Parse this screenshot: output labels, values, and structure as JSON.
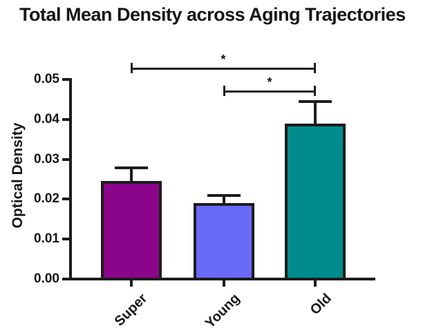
{
  "chart_data": {
    "type": "bar",
    "title": "Total Mean Density across Aging Trajectories",
    "ylabel": "Optical Density",
    "xlabel": "",
    "categories": [
      "Super",
      "Young",
      "Old"
    ],
    "values": [
      0.0245,
      0.019,
      0.039
    ],
    "errors_upper": [
      0.0033,
      0.002,
      0.0055
    ],
    "bar_colors": [
      "#8A0589",
      "#6A6AFA",
      "#008C8C"
    ],
    "ylim": [
      0,
      0.05
    ],
    "yticks": [
      0,
      0.01,
      0.02,
      0.03,
      0.04,
      0.05
    ],
    "ytick_labels": [
      "0.00",
      "0.01",
      "0.02",
      "0.03",
      "0.04",
      "0.05"
    ],
    "grid": false,
    "legend": "none",
    "error_bar_style": "upper-only with caps",
    "significance": [
      {
        "from": "Super",
        "to": "Old",
        "label": "*",
        "y_value": 0.0528
      },
      {
        "from": "Young",
        "to": "Old",
        "label": "*",
        "y_value": 0.0471
      }
    ],
    "colors": {
      "axis": "#1c1c1c",
      "text": "#161616",
      "background": "#ffffff"
    }
  }
}
